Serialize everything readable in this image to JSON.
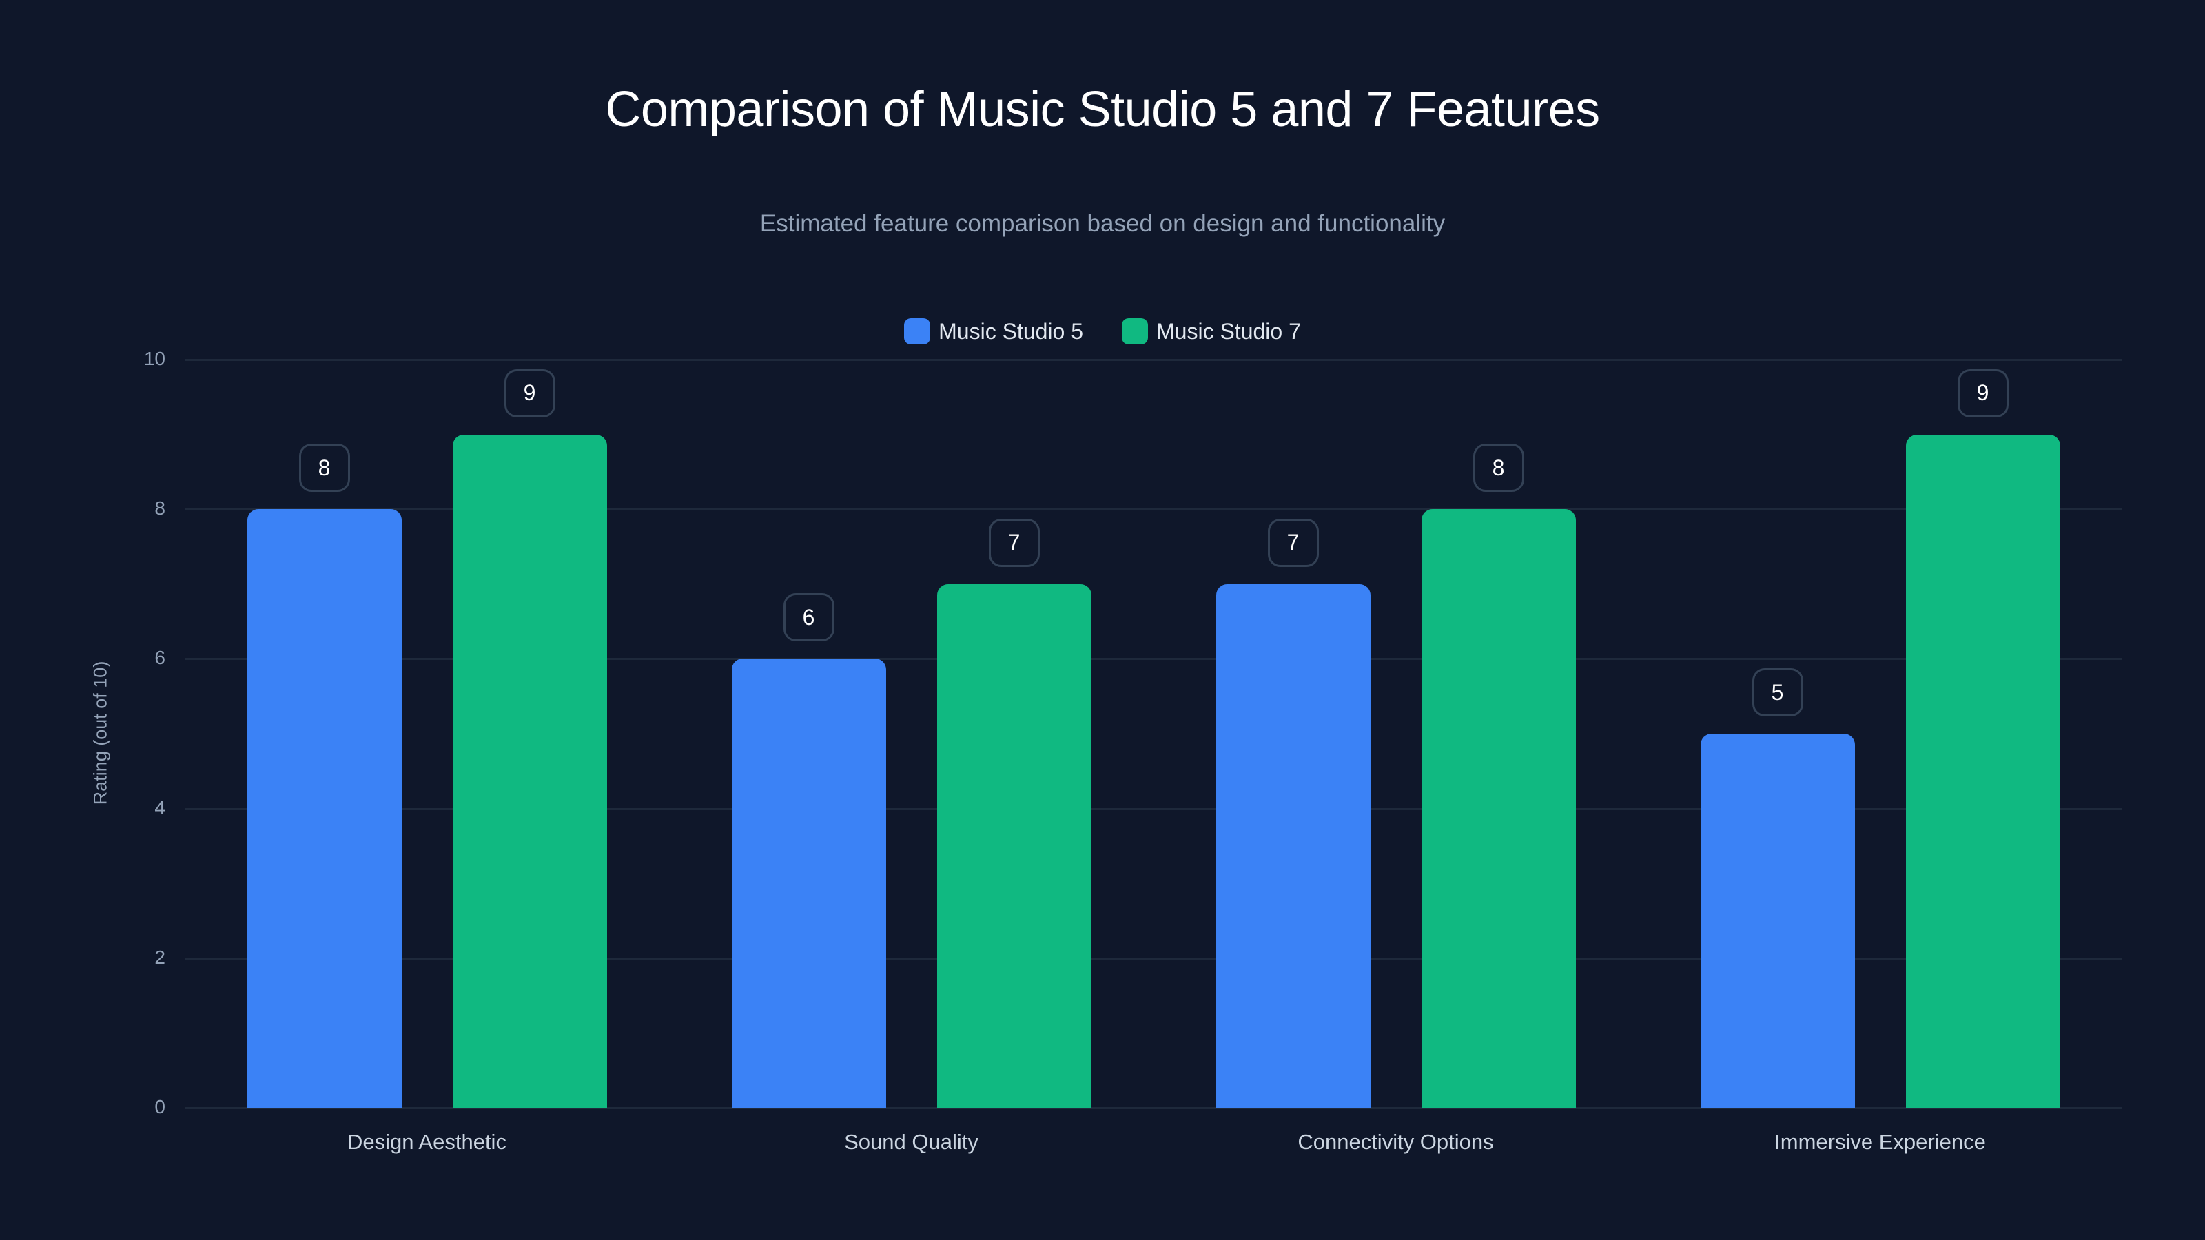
{
  "title": "Comparison of Music Studio 5 and 7 Features",
  "subtitle": "Estimated feature comparison based on design and functionality",
  "legend": [
    {
      "label": "Music Studio 5",
      "color": "#3b82f6"
    },
    {
      "label": "Music Studio 7",
      "color": "#10b981"
    }
  ],
  "y_axis": {
    "label": "Rating (out of 10)",
    "ticks": [
      "0",
      "2",
      "4",
      "6",
      "8",
      "10"
    ]
  },
  "x_axis": {
    "categories": [
      "Design Aesthetic",
      "Sound Quality",
      "Connectivity Options",
      "Immersive Experience"
    ]
  },
  "chart_data": {
    "type": "bar",
    "title": "Comparison of Music Studio 5 and 7 Features",
    "subtitle": "Estimated feature comparison based on design and functionality",
    "xlabel": "",
    "ylabel": "Rating (out of 10)",
    "ylim": [
      0,
      10
    ],
    "yticks": [
      0,
      2,
      4,
      6,
      8,
      10
    ],
    "grid": true,
    "legend_position": "top-center",
    "categories": [
      "Design Aesthetic",
      "Sound Quality",
      "Connectivity Options",
      "Immersive Experience"
    ],
    "series": [
      {
        "name": "Music Studio 5",
        "color": "#3b82f6",
        "values": [
          8,
          6,
          7,
          5
        ]
      },
      {
        "name": "Music Studio 7",
        "color": "#10b981",
        "values": [
          9,
          7,
          8,
          9
        ]
      }
    ],
    "data_labels": true
  }
}
